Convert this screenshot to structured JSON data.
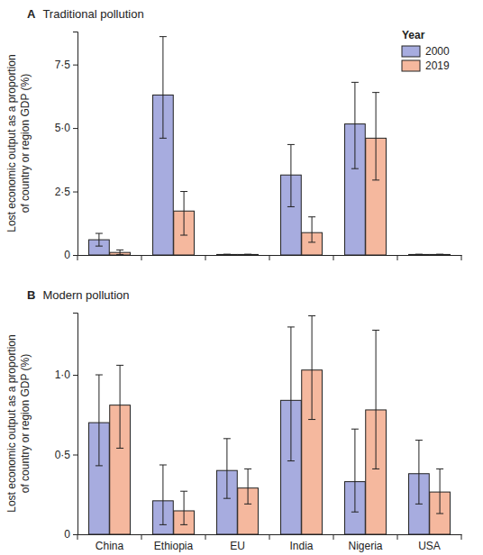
{
  "chart_data": [
    {
      "type": "bar",
      "panel_label": "A",
      "title": "Traditional pollution",
      "y_label": [
        "Lost economic output as a proportion",
        "of country or region GDP (%)"
      ],
      "categories": [
        null,
        null,
        null,
        null,
        null,
        null
      ],
      "series": [
        {
          "name": "2000",
          "color": "#a7acdf",
          "values": [
            0.6,
            6.3,
            0.02,
            3.15,
            5.16,
            0.02
          ],
          "error_low": [
            0.35,
            4.6,
            0.01,
            1.9,
            3.4,
            0.01
          ],
          "error_high": [
            0.85,
            8.6,
            0.03,
            4.35,
            6.8,
            0.03
          ]
        },
        {
          "name": "2019",
          "color": "#f5b89e",
          "values": [
            0.1,
            1.73,
            0.02,
            0.88,
            4.6,
            0.02
          ],
          "error_low": [
            0.02,
            0.78,
            0.01,
            0.5,
            2.95,
            0.01
          ],
          "error_high": [
            0.2,
            2.5,
            0.03,
            1.5,
            6.4,
            0.03
          ]
        }
      ],
      "ylim": [
        0,
        8.8
      ],
      "yticks": [
        0,
        {
          "value": 2.5,
          "label": "2·5"
        },
        {
          "value": 5,
          "label": "5·0"
        },
        {
          "value": 7.5,
          "label": "7·5"
        }
      ],
      "legend": "top-right",
      "legend_title": "Year",
      "tick_labels": "y"
    },
    {
      "type": "bar",
      "panel_label": "B",
      "title": "Modern pollution",
      "y_label": [
        "Lost economic output as a proportion",
        "of country or region GDP (%)"
      ],
      "categories": [
        "China",
        "Ethiopia",
        "EU",
        "India",
        "Nigeria",
        "USA"
      ],
      "series": [
        {
          "color": "#a7acdf",
          "values": [
            0.7,
            0.21,
            0.4,
            0.84,
            0.33,
            0.38
          ],
          "error_low": [
            0.43,
            0.06,
            0.225,
            0.46,
            0.14,
            0.19
          ],
          "error_high": [
            1.0,
            0.435,
            0.6,
            1.3,
            0.66,
            0.59
          ]
        },
        {
          "color": "#f5b89e",
          "values": [
            0.81,
            0.147,
            0.29,
            1.03,
            0.78,
            0.265
          ],
          "error_low": [
            0.54,
            0.06,
            0.19,
            0.72,
            0.41,
            0.13
          ],
          "error_high": [
            1.06,
            0.27,
            0.41,
            1.37,
            1.28,
            0.41
          ]
        }
      ],
      "ylim": [
        0,
        1.39
      ],
      "yticks": [
        0,
        {
          "value": 0.5,
          "label": "0·5"
        },
        {
          "value": 1,
          "label": "1·0"
        }
      ]
    }
  ]
}
